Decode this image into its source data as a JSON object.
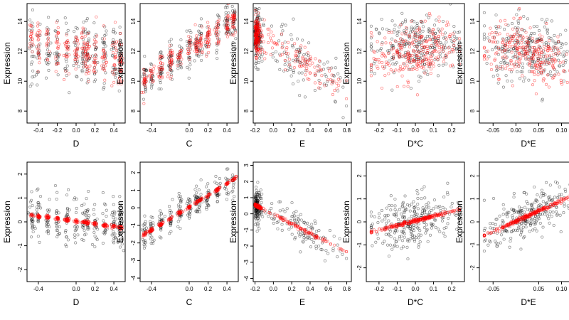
{
  "chart_data": [
    {
      "type": "scatter",
      "xlabel": "D",
      "ylabel": "Expression",
      "xlim": [
        -0.52,
        0.52
      ],
      "ylim": [
        7.2,
        15.2
      ],
      "xticks": [
        "-0.4",
        "-0.2",
        "0.0",
        "0.2",
        "0.4"
      ],
      "xtick_values": [
        -0.4,
        -0.2,
        0.0,
        0.2,
        0.4
      ],
      "yticks": [
        "8",
        "10",
        "12",
        "14"
      ],
      "ytick_values": [
        8,
        10,
        12,
        14
      ],
      "series": [
        {
          "color": "#000000",
          "trend": [
            [
              -0.5,
              12.3
            ],
            [
              0.5,
              11.6
            ]
          ],
          "spread": 1.8
        },
        {
          "color": "#ff0000",
          "trend": [
            [
              -0.5,
              12.8
            ],
            [
              0.5,
              11.3
            ]
          ],
          "spread": 1.4
        }
      ]
    },
    {
      "type": "scatter",
      "xlabel": "C",
      "ylabel": "Expression",
      "xlim": [
        -0.52,
        0.52
      ],
      "ylim": [
        7.2,
        15.2
      ],
      "xticks": [
        "-0.4",
        "0.0",
        "0.2",
        "0.4"
      ],
      "xtick_values": [
        -0.4,
        0.0,
        0.2,
        0.4
      ],
      "yticks": [
        "8",
        "10",
        "12",
        "14"
      ],
      "ytick_values": [
        8,
        10,
        12,
        14
      ],
      "series": [
        {
          "color": "#000000",
          "trend": [
            [
              -0.5,
              10.0
            ],
            [
              0.5,
              14.2
            ]
          ],
          "spread": 1.1
        },
        {
          "color": "#ff0000",
          "trend": [
            [
              -0.5,
              10.0
            ],
            [
              0.5,
              14.2
            ]
          ],
          "spread": 0.7
        }
      ]
    },
    {
      "type": "scatter",
      "xlabel": "E",
      "ylabel": "Expression",
      "xlim": [
        -0.22,
        0.85
      ],
      "ylim": [
        7.2,
        15.2
      ],
      "xticks": [
        "-0.2",
        "0.0",
        "0.2",
        "0.4",
        "0.6",
        "0.8"
      ],
      "xtick_values": [
        -0.2,
        0.0,
        0.2,
        0.4,
        0.6,
        0.8
      ],
      "yticks": [
        "8",
        "10",
        "12",
        "14"
      ],
      "ytick_values": [
        8,
        10,
        12,
        14
      ],
      "series": [
        {
          "color": "#000000",
          "trend": [
            [
              -0.2,
              13.0
            ],
            [
              0.8,
              9.4
            ]
          ],
          "spread": 1.5
        },
        {
          "color": "#ff0000",
          "trend": [
            [
              -0.2,
              13.2
            ],
            [
              0.8,
              9.6
            ]
          ],
          "spread": 1.0
        }
      ]
    },
    {
      "type": "scatter",
      "xlabel": "D*C",
      "ylabel": "Expression",
      "xlim": [
        -0.27,
        0.27
      ],
      "ylim": [
        7.2,
        15.2
      ],
      "xticks": [
        "-0.2",
        "-0.1",
        "0.0",
        "0.1",
        "0.2"
      ],
      "xtick_values": [
        -0.2,
        -0.1,
        0.0,
        0.1,
        0.2
      ],
      "yticks": [
        "8",
        "10",
        "12",
        "14"
      ],
      "ytick_values": [
        8,
        10,
        12,
        14
      ],
      "series": [
        {
          "color": "#000000",
          "trend": [
            [
              -0.25,
              12.2
            ],
            [
              0.25,
              12.6
            ]
          ],
          "spread": 1.6
        },
        {
          "color": "#ff0000",
          "trend": [
            [
              -0.25,
              11.2
            ],
            [
              0.25,
              12.8
            ]
          ],
          "spread": 1.6
        }
      ]
    },
    {
      "type": "scatter",
      "xlabel": "D*E",
      "ylabel": "Expression",
      "xlim": [
        -0.08,
        0.135
      ],
      "ylim": [
        7.2,
        15.2
      ],
      "xticks": [
        "-0.05",
        "0.00",
        "0.05",
        "0.10"
      ],
      "xtick_values": [
        -0.05,
        0.0,
        0.05,
        0.1
      ],
      "yticks": [
        "8",
        "10",
        "12",
        "14"
      ],
      "ytick_values": [
        8,
        10,
        12,
        14
      ],
      "series": [
        {
          "color": "#000000",
          "trend": [
            [
              -0.07,
              12.2
            ],
            [
              0.12,
              12.0
            ]
          ],
          "spread": 1.8
        },
        {
          "color": "#ff0000",
          "trend": [
            [
              -0.07,
              12.5
            ],
            [
              0.12,
              11.0
            ]
          ],
          "spread": 1.5
        }
      ]
    },
    {
      "type": "scatter",
      "xlabel": "D",
      "ylabel": "Expression",
      "xlim": [
        -0.52,
        0.52
      ],
      "ylim": [
        -2.5,
        2.5
      ],
      "xticks": [
        "-0.4",
        "0.0",
        "0.2",
        "0.4"
      ],
      "xtick_values": [
        -0.4,
        0.0,
        0.2,
        0.4
      ],
      "yticks": [
        "-2",
        "-1",
        "0",
        "1",
        "2"
      ],
      "ytick_values": [
        -2,
        -1,
        0,
        1,
        2
      ],
      "series": [
        {
          "color": "#000000",
          "trend": [
            [
              -0.5,
              0.2
            ],
            [
              0.5,
              -0.2
            ]
          ],
          "spread": 0.8
        },
        {
          "color": "#ff0000",
          "trend": [
            [
              -0.5,
              0.3
            ],
            [
              0.5,
              -0.25
            ]
          ],
          "spread": 0.06
        }
      ]
    },
    {
      "type": "scatter",
      "xlabel": "C",
      "ylabel": "Expression",
      "xlim": [
        -0.52,
        0.52
      ],
      "ylim": [
        -4.2,
        2.6
      ],
      "xticks": [
        "-0.4",
        "0.0",
        "0.2",
        "0.4"
      ],
      "xtick_values": [
        -0.4,
        0.0,
        0.2,
        0.4
      ],
      "yticks": [
        "-4",
        "-3",
        "-2",
        "-1",
        "0",
        "1",
        "2"
      ],
      "ytick_values": [
        -4,
        -3,
        -2,
        -1,
        0,
        1,
        2
      ],
      "series": [
        {
          "color": "#000000",
          "trend": [
            [
              -0.5,
              -1.6
            ],
            [
              0.5,
              1.7
            ]
          ],
          "spread": 0.7
        },
        {
          "color": "#ff0000",
          "trend": [
            [
              -0.5,
              -1.6
            ],
            [
              0.5,
              1.7
            ]
          ],
          "spread": 0.08
        }
      ]
    },
    {
      "type": "scatter",
      "xlabel": "E",
      "ylabel": "Expression",
      "xlim": [
        -0.22,
        0.85
      ],
      "ylim": [
        -4.2,
        3.2
      ],
      "xticks": [
        "-0.2",
        "0.0",
        "0.2",
        "0.4",
        "0.6",
        "0.8"
      ],
      "xtick_values": [
        -0.2,
        0.0,
        0.2,
        0.4,
        0.6,
        0.8
      ],
      "yticks": [
        "-4",
        "-3",
        "-2",
        "-1",
        "0",
        "1",
        "2",
        "3"
      ],
      "ytick_values": [
        -4,
        -3,
        -2,
        -1,
        0,
        1,
        2,
        3
      ],
      "series": [
        {
          "color": "#000000",
          "trend": [
            [
              -0.2,
              0.5
            ],
            [
              0.8,
              -2.4
            ]
          ],
          "spread": 0.9
        },
        {
          "color": "#ff0000",
          "trend": [
            [
              -0.2,
              0.55
            ],
            [
              0.8,
              -2.4
            ]
          ],
          "spread": 0.08
        }
      ]
    },
    {
      "type": "scatter",
      "xlabel": "D*C",
      "ylabel": "Expression",
      "xlim": [
        -0.27,
        0.27
      ],
      "ylim": [
        -2.6,
        2.6
      ],
      "xticks": [
        "-0.2",
        "-0.1",
        "0.0",
        "0.1",
        "0.2"
      ],
      "xtick_values": [
        -0.2,
        -0.1,
        0.0,
        0.1,
        0.2
      ],
      "yticks": [
        "-2",
        "-1",
        "0",
        "1",
        "2"
      ],
      "ytick_values": [
        -2,
        -1,
        0,
        1,
        2
      ],
      "series": [
        {
          "color": "#000000",
          "trend": [
            [
              -0.25,
              -0.4
            ],
            [
              0.25,
              0.5
            ]
          ],
          "spread": 0.9
        },
        {
          "color": "#ff0000",
          "trend": [
            [
              -0.25,
              -0.45
            ],
            [
              0.25,
              0.55
            ]
          ],
          "spread": 0.06
        }
      ]
    },
    {
      "type": "scatter",
      "xlabel": "D*E",
      "ylabel": "Expression",
      "xlim": [
        -0.08,
        0.135
      ],
      "ylim": [
        -2.6,
        2.6
      ],
      "xticks": [
        "-0.05",
        "0.05",
        "0.10"
      ],
      "xtick_values": [
        -0.05,
        0.05,
        0.1
      ],
      "yticks": [
        "-2",
        "-1",
        "0",
        "1",
        "2"
      ],
      "ytick_values": [
        -2,
        -1,
        0,
        1,
        2
      ],
      "series": [
        {
          "color": "#000000",
          "trend": [
            [
              -0.07,
              -0.6
            ],
            [
              0.12,
              1.1
            ]
          ],
          "spread": 0.8
        },
        {
          "color": "#ff0000",
          "trend": [
            [
              -0.07,
              -0.6
            ],
            [
              0.12,
              1.1
            ]
          ],
          "spread": 0.07
        }
      ]
    }
  ]
}
